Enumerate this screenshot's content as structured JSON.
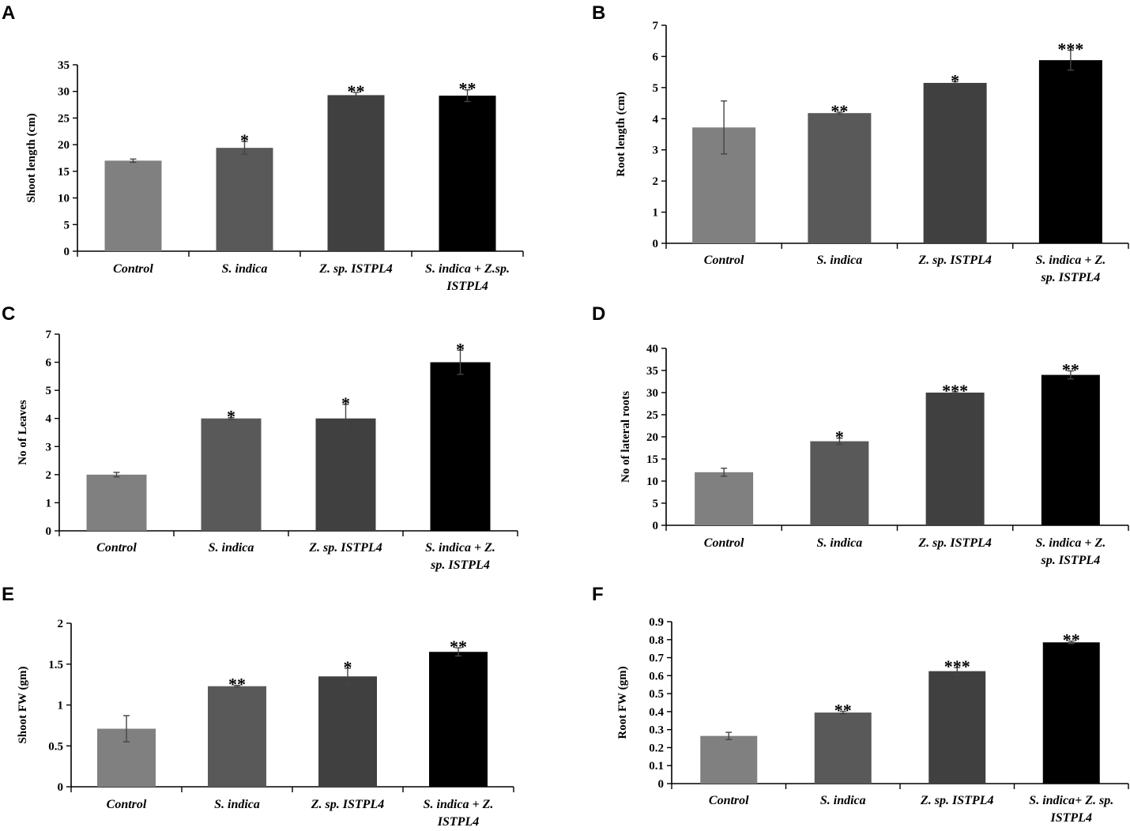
{
  "chart_data": [
    {
      "panel": "A",
      "type": "bar",
      "ylabel": "Shoot length (cm)",
      "xlabel": "",
      "ylim": [
        0,
        35
      ],
      "ystep": 5,
      "ytick_labels": [
        "0",
        "5",
        "10",
        "15",
        "20",
        "25",
        "30",
        "35"
      ],
      "categories": [
        "Control",
        "S. indica",
        "Z. sp. ISTPL4",
        "S. indica + Z.sp. ISTPL4"
      ],
      "values": [
        17.0,
        19.4,
        29.3,
        29.2
      ],
      "errors": [
        0.3,
        1.2,
        0.5,
        1.1
      ],
      "significance": [
        "",
        "*",
        "**",
        "**"
      ],
      "bar_colors": [
        "#808080",
        "#595959",
        "#404040",
        "#000000"
      ]
    },
    {
      "panel": "B",
      "type": "bar",
      "ylabel": "Root length (cm)",
      "xlabel": "",
      "ylim": [
        0,
        7
      ],
      "ystep": 1,
      "ytick_labels": [
        "0",
        "1",
        "2",
        "3",
        "4",
        "5",
        "6",
        "7"
      ],
      "categories": [
        "Control",
        "S. indica",
        "Z. sp. ISTPL4",
        "S. indica + Z. sp. ISTPL4"
      ],
      "values": [
        3.72,
        4.18,
        5.15,
        5.88
      ],
      "errors": [
        0.85,
        0.03,
        0.04,
        0.32
      ],
      "significance": [
        "",
        "**",
        "*",
        "***"
      ],
      "bar_colors": [
        "#808080",
        "#595959",
        "#404040",
        "#000000"
      ]
    },
    {
      "panel": "C",
      "type": "bar",
      "ylabel": "No of  Leaves",
      "xlabel": "",
      "ylim": [
        0,
        7
      ],
      "ystep": 1,
      "ytick_labels": [
        "0",
        "1",
        "2",
        "3",
        "4",
        "5",
        "6",
        "7"
      ],
      "categories": [
        "Control",
        "S. indica",
        "Z. sp. ISTPL4",
        "S. indica + Z. sp. ISTPL4"
      ],
      "values": [
        2.0,
        4.0,
        4.0,
        6.0
      ],
      "errors": [
        0.08,
        0.03,
        0.5,
        0.43
      ],
      "significance": [
        "",
        "*",
        "*",
        "*"
      ],
      "bar_colors": [
        "#808080",
        "#595959",
        "#404040",
        "#000000"
      ]
    },
    {
      "panel": "D",
      "type": "bar",
      "ylabel": "No of lateral roots",
      "xlabel": "",
      "ylim": [
        0,
        40
      ],
      "ystep": 5,
      "ytick_labels": [
        "0",
        "5",
        "10",
        "15",
        "20",
        "25",
        "30",
        "35",
        "40"
      ],
      "categories": [
        "Control",
        "S. indica",
        "Z. sp. ISTPL4",
        "S. indica + Z. sp. ISTPL4"
      ],
      "values": [
        12.0,
        19.0,
        30.0,
        34.0
      ],
      "errors": [
        0.9,
        0.7,
        0.2,
        0.9
      ],
      "significance": [
        "",
        "*",
        "***",
        "**"
      ],
      "bar_colors": [
        "#808080",
        "#595959",
        "#404040",
        "#000000"
      ]
    },
    {
      "panel": "E",
      "type": "bar",
      "ylabel": "Shoot FW (gm)",
      "xlabel": "",
      "ylim": [
        0,
        2
      ],
      "ystep": 0.5,
      "ytick_labels": [
        "0",
        "0.5",
        "1",
        "1.5",
        "2"
      ],
      "categories": [
        "Control",
        "S. indica",
        "Z. sp. ISTPL4",
        "S. indica + Z. ISTPL4"
      ],
      "values": [
        0.71,
        1.23,
        1.35,
        1.65
      ],
      "errors": [
        0.16,
        0.01,
        0.1,
        0.05
      ],
      "significance": [
        "",
        "**",
        "*",
        "**"
      ],
      "bar_colors": [
        "#808080",
        "#595959",
        "#404040",
        "#000000"
      ]
    },
    {
      "panel": "F",
      "type": "bar",
      "ylabel": "Root FW (gm)",
      "xlabel": "",
      "ylim": [
        0,
        0.9
      ],
      "ystep": 0.1,
      "ytick_labels": [
        "0",
        "0.1",
        "0.2",
        "0.3",
        "0.4",
        "0.5",
        "0.6",
        "0.7",
        "0.8",
        "0.9"
      ],
      "categories": [
        "Control",
        "S. indica",
        "Z. sp. ISTPL4",
        "S. indica+ Z. sp. ISTPL4"
      ],
      "values": [
        0.265,
        0.395,
        0.625,
        0.785
      ],
      "errors": [
        0.02,
        0.007,
        0.02,
        0.007
      ],
      "significance": [
        "",
        "**",
        "***",
        "**"
      ],
      "bar_colors": [
        "#808080",
        "#595959",
        "#404040",
        "#000000"
      ]
    }
  ]
}
